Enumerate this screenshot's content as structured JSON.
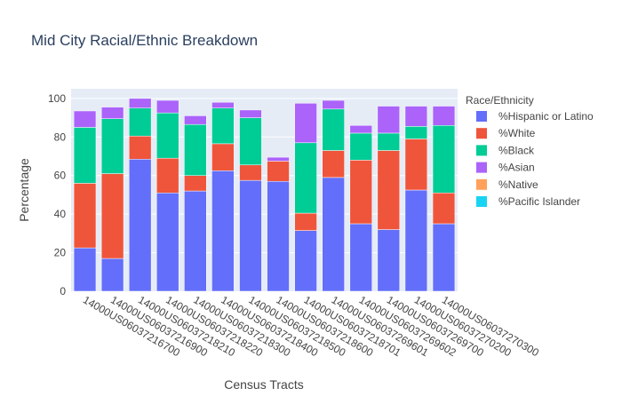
{
  "chart_data": {
    "type": "bar",
    "stacked": true,
    "title": "Mid City Racial/Ethnic Breakdown",
    "xlabel": "Census Tracts",
    "ylabel": "Percentage",
    "ylim": [
      0,
      105
    ],
    "yticks": [
      0,
      20,
      40,
      60,
      80,
      100
    ],
    "grid": true,
    "legend_title": "Race/Ethnicity",
    "legend_position": "right",
    "categories": [
      "14000US06037216700",
      "14000US06037216900",
      "14000US06037218210",
      "14000US06037218220",
      "14000US06037218300",
      "14000US06037218400",
      "14000US06037218500",
      "14000US06037218600",
      "14000US06037218701",
      "14000US06037269601",
      "14000US06037269602",
      "14000US06037269700",
      "14000US06037270200",
      "14000US06037270300"
    ],
    "series": [
      {
        "name": "%Hispanic or Latino",
        "color": "#636efa",
        "values": [
          22.5,
          17.0,
          68.5,
          51.0,
          52.0,
          62.5,
          57.5,
          57.0,
          31.5,
          59.0,
          35.0,
          32.0,
          52.5,
          35.0
        ]
      },
      {
        "name": "%White",
        "color": "#ef553b",
        "values": [
          33.5,
          44.0,
          12.0,
          18.0,
          8.0,
          14.0,
          8.0,
          10.5,
          9.0,
          14.0,
          33.0,
          41.0,
          26.5,
          16.0
        ]
      },
      {
        "name": "%Black",
        "color": "#00cc96",
        "values": [
          29.0,
          28.5,
          14.5,
          23.5,
          26.5,
          18.5,
          24.5,
          0.0,
          36.5,
          21.5,
          14.0,
          9.0,
          6.5,
          35.0
        ]
      },
      {
        "name": "%Asian",
        "color": "#ab63fa",
        "values": [
          8.5,
          6.0,
          5.0,
          6.5,
          4.5,
          3.0,
          4.0,
          2.0,
          20.5,
          4.5,
          4.0,
          14.0,
          10.5,
          10.0
        ]
      },
      {
        "name": "%Native",
        "color": "#ffa15a",
        "values": [
          0,
          0,
          0,
          0,
          0,
          0,
          0,
          0,
          0,
          0,
          0,
          0,
          0,
          0
        ]
      },
      {
        "name": "%Pacific Islander",
        "color": "#19d3f3",
        "values": [
          0,
          0,
          0,
          0,
          0,
          0,
          0,
          0,
          0,
          0,
          0,
          0,
          0,
          0
        ]
      }
    ],
    "colors": {
      "plot_bg": "#e5ecf6",
      "grid": "#ffffff",
      "text": "#444444",
      "title": "#2a3f5f"
    }
  }
}
